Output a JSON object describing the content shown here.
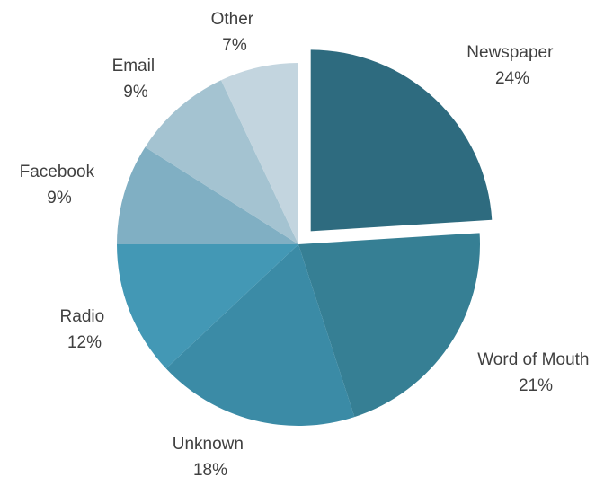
{
  "chart_data": {
    "type": "pie",
    "exploded": "Newspaper",
    "slices": [
      {
        "label": "Newspaper",
        "value": 24,
        "value_label": "24%",
        "color": "#2e6b7f"
      },
      {
        "label": "Word of Mouth",
        "value": 21,
        "value_label": "21%",
        "color": "#367f94"
      },
      {
        "label": "Unknown",
        "value": 18,
        "value_label": "18%",
        "color": "#3b8ba6"
      },
      {
        "label": "Radio",
        "value": 12,
        "value_label": "12%",
        "color": "#4398b5"
      },
      {
        "label": "Facebook",
        "value": 9,
        "value_label": "9%",
        "color": "#80afc3"
      },
      {
        "label": "Email",
        "value": 9,
        "value_label": "9%",
        "color": "#a4c3d1"
      },
      {
        "label": "Other",
        "value": 7,
        "value_label": "7%",
        "color": "#c3d5df"
      }
    ]
  }
}
